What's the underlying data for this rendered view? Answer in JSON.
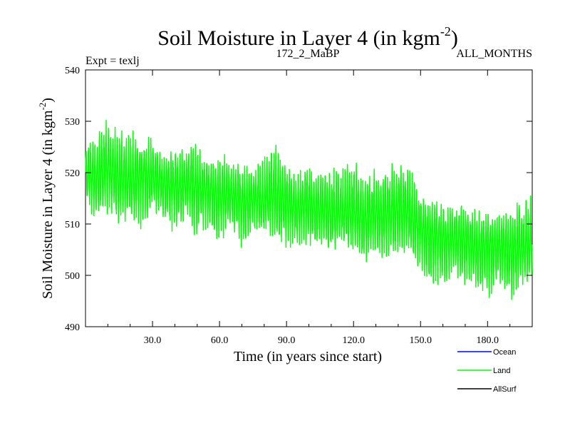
{
  "chart_data": {
    "type": "line",
    "title_main": "Soil Moisture in Layer 4 (in kgm",
    "title_sup": "-2",
    "title_end": ")",
    "subtitle_left": "Expt = texlj",
    "subtitle_center": "172_2_MaBP",
    "subtitle_right": "ALL_MONTHS",
    "xlabel": "Time (in years since start)",
    "ylabel_main": "Soil Moisture in Layer 4 (in kgm",
    "ylabel_sup": "-2",
    "ylabel_end": ")",
    "xlim": [
      0,
      200
    ],
    "ylim": [
      490,
      540
    ],
    "x_ticks": [
      30,
      60,
      90,
      120,
      150,
      180
    ],
    "x_tick_labels": [
      "30.0",
      "60.0",
      "90.0",
      "120.0",
      "150.0",
      "180.0"
    ],
    "y_ticks": [
      490,
      500,
      510,
      520,
      530,
      540
    ],
    "y_tick_labels": [
      "490",
      "500",
      "510",
      "520",
      "530",
      "540"
    ],
    "legend": [
      {
        "name": "Ocean",
        "color": "#0000ff"
      },
      {
        "name": "Land",
        "color": "#00ff00"
      },
      {
        "name": "AllSurf",
        "color": "#000000"
      }
    ],
    "series": [
      {
        "name": "Land",
        "color": "#00ff00",
        "x": [
          0,
          5,
          10,
          15,
          20,
          25,
          30,
          35,
          40,
          45,
          50,
          55,
          60,
          65,
          70,
          75,
          80,
          85,
          90,
          95,
          100,
          105,
          110,
          115,
          120,
          125,
          130,
          135,
          140,
          145,
          150,
          155,
          160,
          165,
          170,
          175,
          180,
          185,
          190,
          195,
          200
        ],
        "mean": [
          520,
          519,
          521,
          519,
          518,
          520,
          519,
          518,
          517,
          518,
          517,
          517,
          515,
          516,
          514,
          515,
          514,
          516,
          514,
          513,
          514,
          513,
          512,
          512,
          512,
          511,
          512,
          512,
          513,
          512,
          509,
          508,
          507,
          507,
          507,
          505,
          506,
          506,
          505,
          505,
          506
        ],
        "min": [
          514,
          510,
          511,
          510,
          510,
          508,
          511,
          510,
          508,
          510,
          507,
          509,
          506,
          509,
          505,
          508,
          508,
          506,
          505,
          505,
          504,
          505,
          504,
          506,
          504,
          502,
          504,
          502,
          503,
          503,
          500,
          497,
          498,
          500,
          498,
          497,
          494,
          497,
          494,
          497,
          500
        ],
        "max": [
          527,
          527,
          532,
          528,
          529,
          527,
          527,
          524,
          525,
          526,
          526,
          522,
          525,
          522,
          522,
          521,
          524,
          526,
          522,
          521,
          522,
          521,
          522,
          522,
          523,
          520,
          521,
          521,
          523,
          522,
          516,
          515,
          514,
          514,
          515,
          513,
          512,
          512,
          513,
          515,
          517
        ]
      }
    ]
  }
}
